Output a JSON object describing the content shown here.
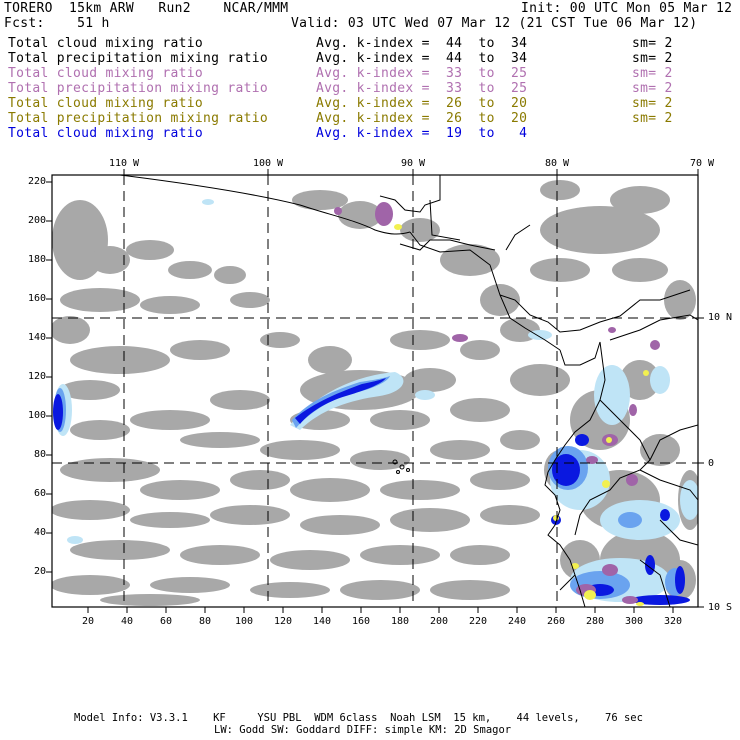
{
  "header": {
    "model": "TORERO  15km ARW   Run2    NCAR/MMM",
    "init": "Init: 00 UTC Mon 05 Mar 12",
    "fcst": "Fcst:    51 h",
    "valid": "Valid: 03 UTC Wed 07 Mar 12 (21 CST Tue 06 Mar 12)"
  },
  "legend": [
    {
      "field": "Total cloud mixing ratio",
      "range": "Avg. k-index =  44  to  34",
      "sm": "sm= 2",
      "color": "#000000"
    },
    {
      "field": "Total precipitation mixing ratio",
      "range": "Avg. k-index =  44  to  34",
      "sm": "sm= 2",
      "color": "#000000"
    },
    {
      "field": "Total cloud mixing ratio",
      "range": "Avg. k-index =  33  to  25",
      "sm": "sm= 2",
      "color": "#b070b0"
    },
    {
      "field": "Total precipitation mixing ratio",
      "range": "Avg. k-index =  33  to  25",
      "sm": "sm= 2",
      "color": "#b070b0"
    },
    {
      "field": "Total cloud mixing ratio",
      "range": "Avg. k-index =  26  to  20",
      "sm": "sm= 2",
      "color": "#8a7a00"
    },
    {
      "field": "Total precipitation mixing ratio",
      "range": "Avg. k-index =  26  to  20",
      "sm": "sm= 2",
      "color": "#8a7a00"
    },
    {
      "field": "Total cloud mixing ratio",
      "range": "Avg. k-index =  19  to   4",
      "sm": "",
      "color": "#0000dd"
    }
  ],
  "axes": {
    "top": [
      "110 W",
      "100 W",
      "90 W",
      "80 W",
      "70 W"
    ],
    "right": [
      "10 N",
      "0",
      "10 S"
    ],
    "left": [
      "220",
      "200",
      "180",
      "160",
      "140",
      "120",
      "100",
      "80",
      "60",
      "40",
      "20"
    ],
    "bottom": [
      "20",
      "40",
      "60",
      "80",
      "100",
      "120",
      "140",
      "160",
      "180",
      "200",
      "220",
      "240",
      "260",
      "280",
      "300",
      "320"
    ]
  },
  "footer": {
    "line1": "Model Info: V3.3.1    KF     YSU PBL  WDM 6class  Noah LSM  15 km,    44 levels,    76 sec",
    "line2": "LW: Godd SW: Goddard DIFF: simple KM: 2D Smagor"
  },
  "colors": {
    "cloud_gray": "#a8a8a8",
    "light_blue": "#bfe4f6",
    "mid_blue": "#6aa3ef",
    "deep_blue": "#0a18e0",
    "purple": "#a064a8",
    "yellow": "#f2f050",
    "coast": "#000000"
  }
}
